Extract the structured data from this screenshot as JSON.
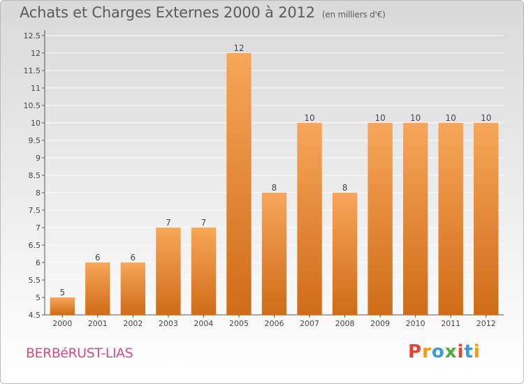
{
  "header": {
    "title": "Achats et Charges Externes 2000 à 2012",
    "subtitle": "(en milliers d'€)"
  },
  "footer": {
    "place": "BERBéRUST-LIAS",
    "logo": "Proxiti"
  },
  "colors": {
    "bar_top": "#f7a65a",
    "bar_bottom": "#cf6c17",
    "grid": "#ffffff",
    "logo_letters": [
      "#e9412f",
      "#f39a12",
      "#3a9bd6",
      "#4caf3a",
      "#e9412f",
      "#3a9bd6",
      "#f39a12"
    ]
  },
  "chart_data": {
    "type": "bar",
    "categories": [
      "2000",
      "2001",
      "2002",
      "2003",
      "2004",
      "2005",
      "2006",
      "2007",
      "2008",
      "2009",
      "2010",
      "2011",
      "2012"
    ],
    "values": [
      5,
      6,
      6,
      7,
      7,
      12,
      8,
      10,
      8,
      10,
      10,
      10,
      10
    ],
    "data_labels": [
      "5",
      "6",
      "6",
      "7",
      "7",
      "12",
      "8",
      "10",
      "8",
      "10",
      "10",
      "10",
      "10"
    ],
    "ylim": [
      4.5,
      12.5
    ],
    "yticks": [
      "4.5",
      "5",
      "5.5",
      "6",
      "6.5",
      "7",
      "7.5",
      "8",
      "8.5",
      "9",
      "9.5",
      "10",
      "10.5",
      "11",
      "11.5",
      "12",
      "12.5"
    ],
    "xlabel": "",
    "ylabel": "",
    "grid": true
  }
}
